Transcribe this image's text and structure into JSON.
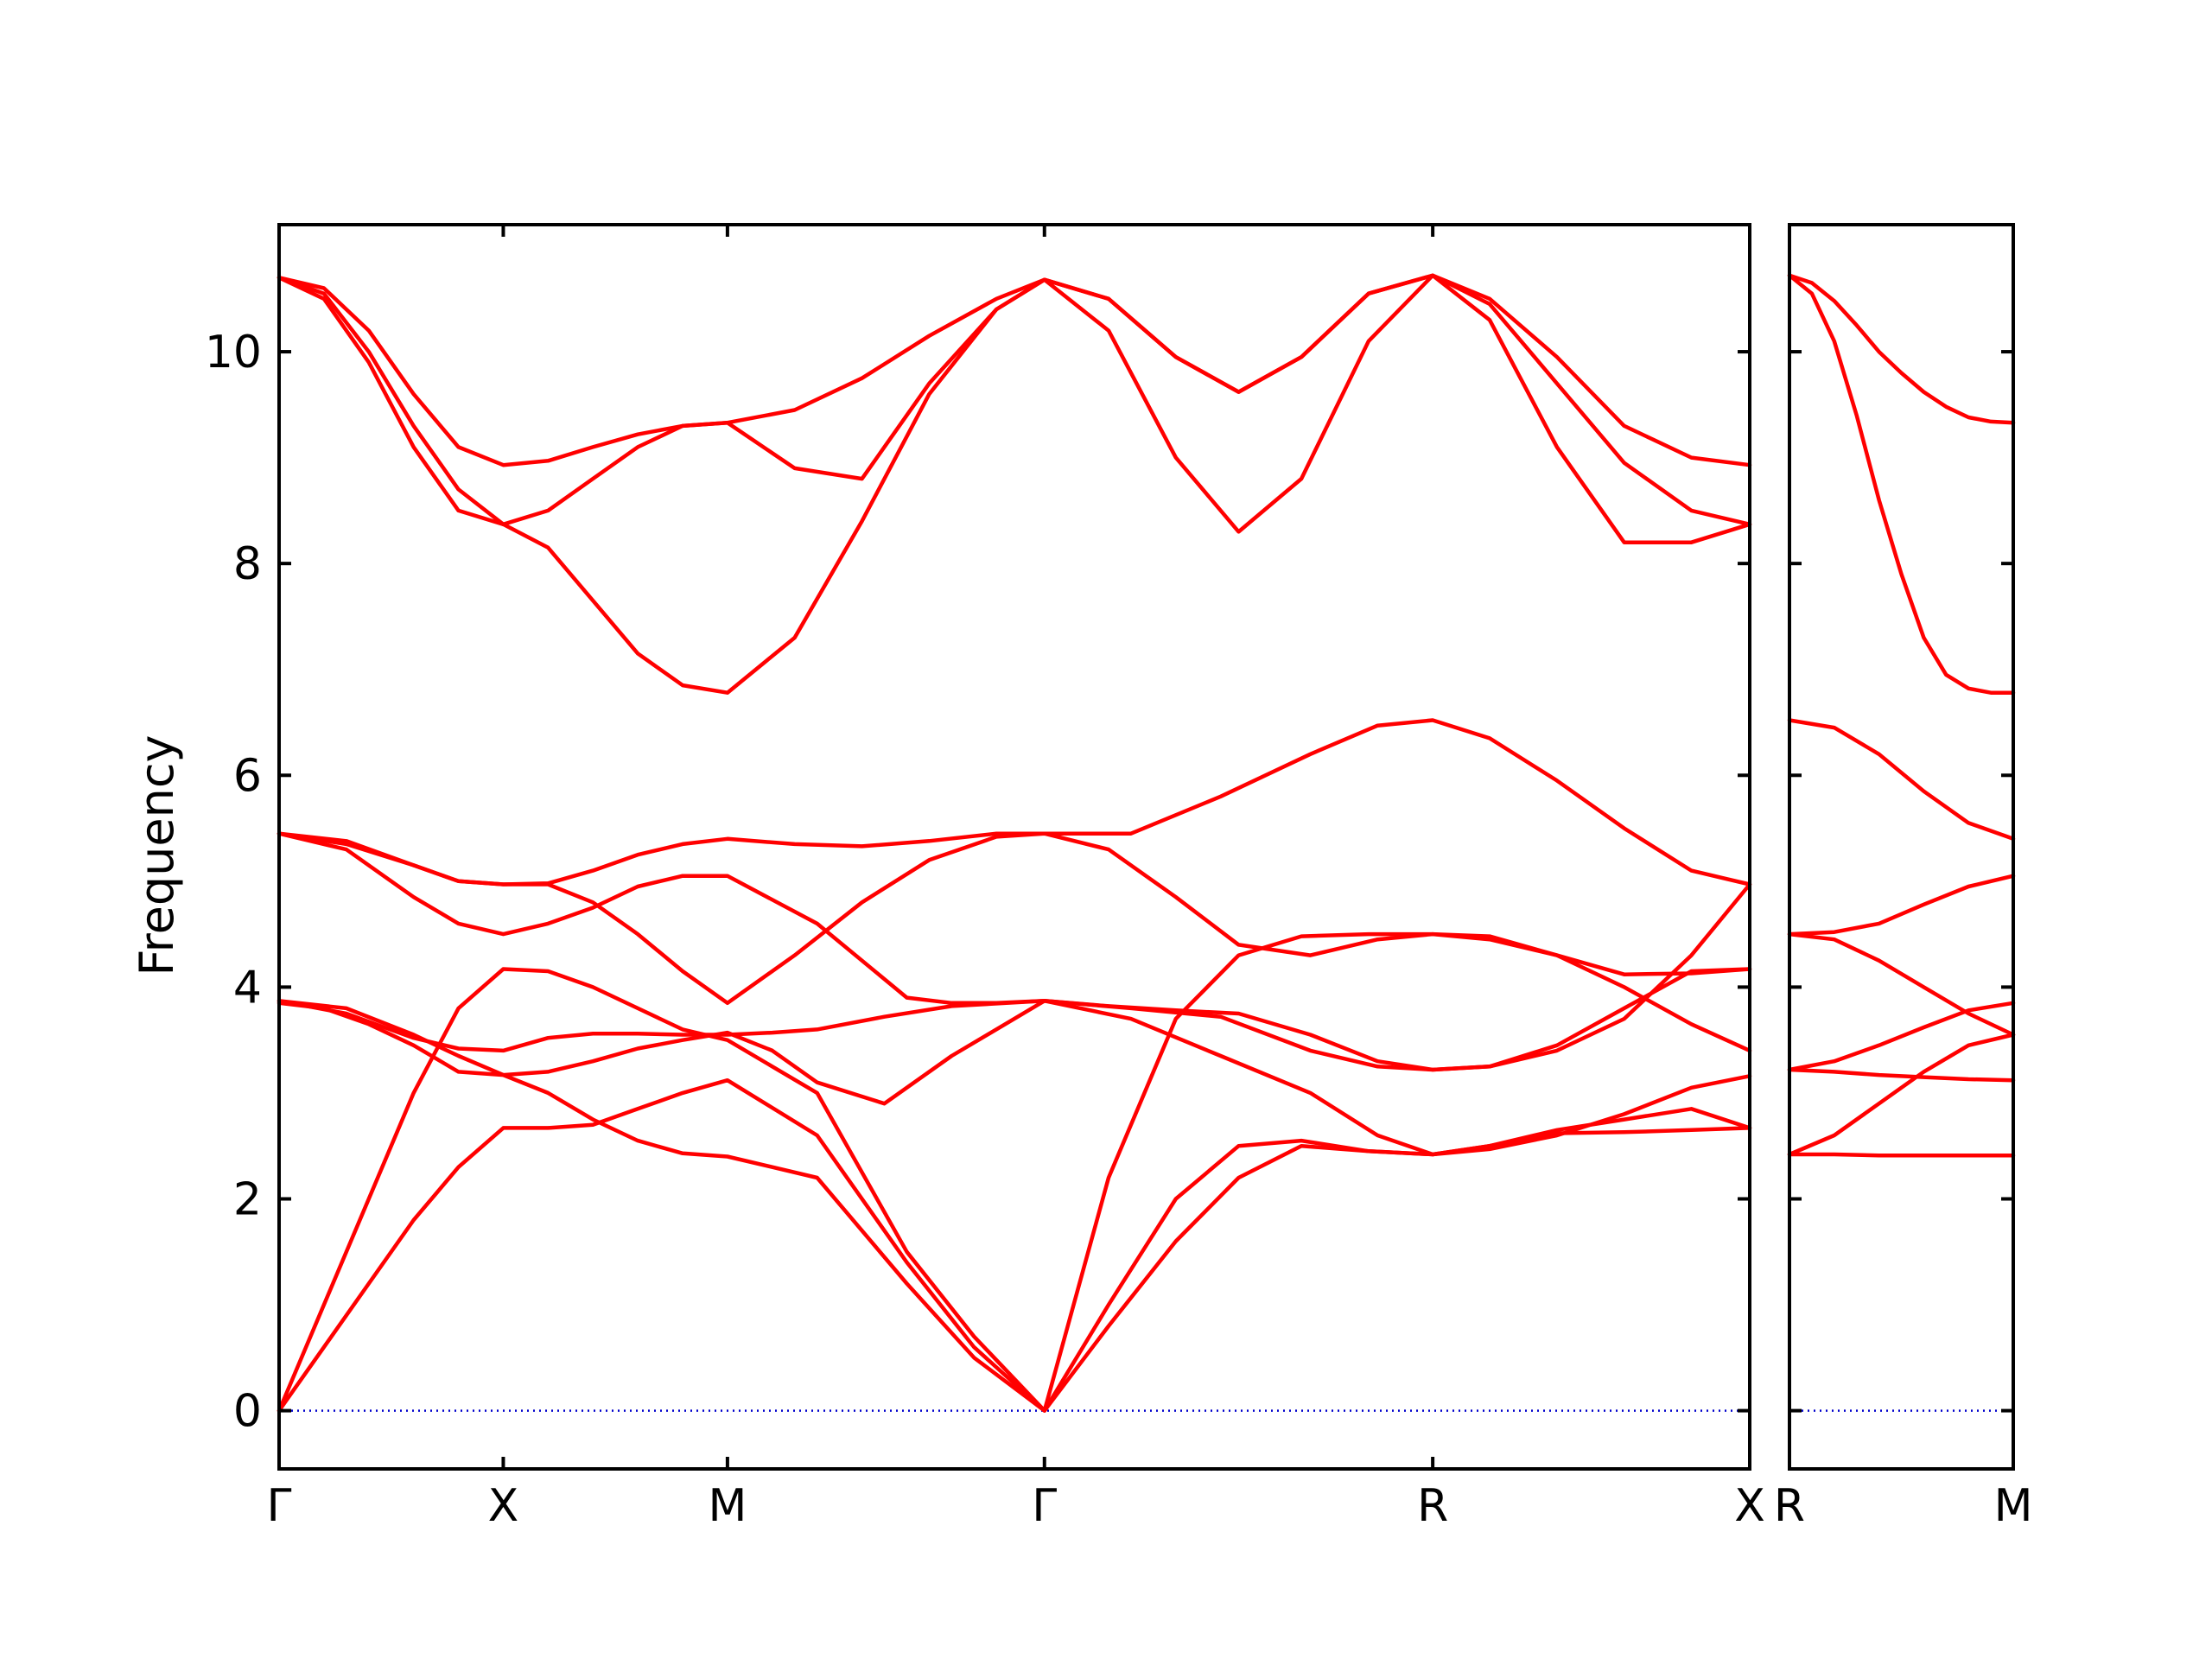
{
  "colors": {
    "band": "#ff0000",
    "zero_line": "#0000cc",
    "frame": "#000000",
    "background": "#ffffff"
  },
  "chart_data": {
    "type": "line",
    "title": "",
    "ylabel": "Frequency",
    "ylim": [
      -0.55,
      11.2
    ],
    "yticks": [
      0,
      2,
      4,
      6,
      8,
      10
    ],
    "ytick_labels": [
      "0",
      "2",
      "4",
      "6",
      "8",
      "10"
    ],
    "zero_line": 0,
    "grid": false,
    "legend": "none",
    "panels": [
      {
        "name": "panel-main",
        "kpoints": [
          {
            "label": "Γ",
            "x": 0
          },
          {
            "label": "X",
            "x": 0.5
          },
          {
            "label": "M",
            "x": 1.0
          },
          {
            "label": "Γ",
            "x": 1.707
          },
          {
            "label": "R",
            "x": 2.573
          },
          {
            "label": "X",
            "x": 3.28
          }
        ],
        "xlim": [
          0,
          3.28
        ],
        "series": [
          {
            "x": [
              0,
              0.1,
              0.2,
              0.3,
              0.4,
              0.5,
              0.6,
              0.7,
              0.8,
              0.9,
              1.0,
              1.2,
              1.4,
              1.55,
              1.707,
              1.85,
              2.0,
              2.14,
              2.28,
              2.43,
              2.573,
              2.7,
              2.85,
              3.0,
              3.15,
              3.28
            ],
            "y": [
              0,
              1.0,
              2.0,
              3.0,
              3.8,
              4.17,
              4.15,
              4.0,
              3.8,
              3.6,
              3.5,
              3.0,
              1.5,
              0.7,
              0,
              2.2,
              3.7,
              4.3,
              4.48,
              4.5,
              4.5,
              4.45,
              4.3,
              4.0,
              3.65,
              3.4
            ]
          },
          {
            "x": [
              0,
              0.1,
              0.2,
              0.3,
              0.4,
              0.5,
              0.6,
              0.7,
              0.8,
              0.9,
              1.0,
              1.2,
              1.4,
              1.55,
              1.707,
              1.85,
              2.0,
              2.14,
              2.28,
              2.43,
              2.573,
              2.7,
              2.85,
              3.0,
              3.15,
              3.28
            ],
            "y": [
              0,
              0.6,
              1.2,
              1.8,
              2.3,
              2.67,
              2.67,
              2.7,
              2.85,
              3.0,
              3.12,
              2.6,
              1.4,
              0.6,
              0,
              0.8,
              1.6,
              2.2,
              2.5,
              2.45,
              2.42,
              2.47,
              2.6,
              2.8,
              3.05,
              3.16
            ]
          },
          {
            "x": [
              0,
              0.1,
              0.2,
              0.3,
              0.4,
              0.5,
              0.6,
              0.7,
              0.8,
              0.9,
              1.0,
              1.2,
              1.4,
              1.55,
              1.707,
              1.85,
              2.0,
              2.14,
              2.28,
              2.43,
              2.573,
              2.7,
              2.85,
              3.0,
              3.15,
              3.28
            ],
            "y": [
              3.85,
              3.8,
              3.65,
              3.45,
              3.2,
              3.17,
              3.0,
              2.75,
              2.55,
              2.43,
              2.4,
              2.2,
              1.2,
              0.5,
              0,
              1.0,
              2.0,
              2.5,
              2.55,
              2.45,
              2.42,
              2.5,
              2.62,
              2.63,
              2.65,
              2.67
            ]
          },
          {
            "x": [
              0,
              0.15,
              0.3,
              0.4,
              0.5,
              0.6,
              0.7,
              0.8,
              0.9,
              1.0,
              1.1,
              1.2,
              1.35,
              1.5,
              1.707,
              1.9,
              2.1,
              2.3,
              2.45,
              2.573,
              2.7,
              2.85,
              3.0,
              3.15,
              3.28
            ],
            "y": [
              3.87,
              3.75,
              3.52,
              3.42,
              3.4,
              3.52,
              3.56,
              3.56,
              3.55,
              3.55,
              3.57,
              3.6,
              3.72,
              3.82,
              3.87,
              3.8,
              3.72,
              3.4,
              3.25,
              3.22,
              3.25,
              3.45,
              3.8,
              4.15,
              4.17
            ]
          },
          {
            "x": [
              0,
              0.15,
              0.3,
              0.4,
              0.5,
              0.6,
              0.7,
              0.8,
              0.9,
              1.0,
              1.1,
              1.2,
              1.35,
              1.5,
              1.707,
              1.9,
              2.1,
              2.3,
              2.45,
              2.573,
              2.7,
              2.85,
              3.0,
              3.15,
              3.28
            ],
            "y": [
              3.87,
              3.8,
              3.55,
              3.35,
              3.17,
              3.2,
              3.3,
              3.42,
              3.5,
              3.57,
              3.4,
              3.1,
              2.9,
              3.35,
              3.87,
              3.7,
              3.35,
              3.0,
              2.6,
              2.42,
              2.5,
              2.65,
              2.75,
              2.85,
              2.67
            ]
          },
          {
            "x": [
              0,
              0.15,
              0.3,
              0.4,
              0.5,
              0.6,
              0.7,
              0.8,
              0.9,
              1.0,
              1.2,
              1.4,
              1.5,
              1.6,
              1.707,
              1.85,
              2.0,
              2.14,
              2.3,
              2.45,
              2.573,
              2.7,
              2.85,
              3.0,
              3.15,
              3.28
            ],
            "y": [
              5.45,
              5.3,
              4.85,
              4.6,
              4.5,
              4.6,
              4.75,
              4.95,
              5.05,
              5.05,
              4.6,
              3.9,
              3.85,
              3.85,
              3.87,
              3.82,
              3.78,
              3.75,
              3.55,
              3.3,
              3.22,
              3.25,
              3.4,
              3.7,
              4.3,
              4.97
            ]
          },
          {
            "x": [
              0,
              0.15,
              0.3,
              0.4,
              0.5,
              0.6,
              0.7,
              0.8,
              0.9,
              1.0,
              1.15,
              1.3,
              1.45,
              1.6,
              1.707,
              1.85,
              2.0,
              2.14,
              2.3,
              2.45,
              2.573,
              2.7,
              2.85,
              3.0,
              3.15,
              3.28
            ],
            "y": [
              5.45,
              5.35,
              5.15,
              5.0,
              4.97,
              4.97,
              4.8,
              4.5,
              4.15,
              3.85,
              4.3,
              4.8,
              5.2,
              5.42,
              5.45,
              5.3,
              4.85,
              4.4,
              4.3,
              4.45,
              4.5,
              4.48,
              4.3,
              4.12,
              4.13,
              4.17
            ]
          },
          {
            "x": [
              0,
              0.15,
              0.3,
              0.4,
              0.5,
              0.6,
              0.7,
              0.8,
              0.9,
              1.0,
              1.15,
              1.3,
              1.45,
              1.6,
              1.707,
              1.9,
              2.1,
              2.3,
              2.45,
              2.573,
              2.7,
              2.85,
              3.0,
              3.15,
              3.28
            ],
            "y": [
              5.45,
              5.38,
              5.15,
              5.0,
              4.97,
              4.98,
              5.1,
              5.25,
              5.35,
              5.4,
              5.35,
              5.33,
              5.38,
              5.45,
              5.45,
              5.45,
              5.8,
              6.2,
              6.47,
              6.52,
              6.35,
              5.95,
              5.5,
              5.1,
              4.97
            ]
          },
          {
            "x": [
              0,
              0.1,
              0.2,
              0.3,
              0.4,
              0.5,
              0.6,
              0.7,
              0.8,
              0.9,
              1.0,
              1.15,
              1.3,
              1.45,
              1.6,
              1.707,
              1.85,
              2.0,
              2.14,
              2.28,
              2.43,
              2.573,
              2.7,
              2.85,
              3.0,
              3.15,
              3.28
            ],
            "y": [
              10.7,
              10.5,
              9.9,
              9.1,
              8.5,
              8.37,
              8.15,
              7.65,
              7.15,
              6.85,
              6.78,
              7.3,
              8.4,
              9.6,
              10.4,
              10.68,
              10.2,
              9.0,
              8.3,
              8.8,
              10.1,
              10.72,
              10.3,
              9.1,
              8.2,
              8.2,
              8.37
            ]
          },
          {
            "x": [
              0,
              0.1,
              0.2,
              0.3,
              0.4,
              0.5,
              0.6,
              0.7,
              0.8,
              0.9,
              1.0,
              1.15,
              1.3,
              1.45,
              1.6,
              1.707,
              1.85,
              2.0,
              2.14,
              2.28,
              2.43,
              2.573,
              2.7,
              2.85,
              3.0,
              3.15,
              3.28
            ],
            "y": [
              10.7,
              10.55,
              10.0,
              9.3,
              8.7,
              8.37,
              8.5,
              8.8,
              9.1,
              9.3,
              9.33,
              8.9,
              8.8,
              9.7,
              10.4,
              10.68,
              10.5,
              9.95,
              9.62,
              9.95,
              10.55,
              10.72,
              10.45,
              9.7,
              8.95,
              8.5,
              8.37
            ]
          },
          {
            "x": [
              0,
              0.1,
              0.2,
              0.3,
              0.4,
              0.5,
              0.6,
              0.7,
              0.8,
              0.9,
              1.0,
              1.15,
              1.3,
              1.45,
              1.6,
              1.707,
              1.85,
              2.0,
              2.14,
              2.28,
              2.43,
              2.573,
              2.7,
              2.85,
              3.0,
              3.15,
              3.28
            ],
            "y": [
              10.7,
              10.6,
              10.2,
              9.6,
              9.1,
              8.93,
              8.97,
              9.1,
              9.22,
              9.3,
              9.33,
              9.45,
              9.75,
              10.15,
              10.5,
              10.68,
              10.5,
              9.95,
              9.62,
              9.95,
              10.55,
              10.72,
              10.5,
              9.95,
              9.3,
              9.0,
              8.93
            ]
          }
        ]
      },
      {
        "name": "panel-right",
        "kpoints": [
          {
            "label": "R",
            "x": 0
          },
          {
            "label": "M",
            "x": 0.5
          }
        ],
        "xlim": [
          0,
          0.5
        ],
        "series": [
          {
            "x": [
              0,
              0.1,
              0.2,
              0.3,
              0.4,
              0.5
            ],
            "y": [
              2.42,
              2.42,
              2.41,
              2.41,
              2.41,
              2.41
            ]
          },
          {
            "x": [
              0,
              0.1,
              0.2,
              0.3,
              0.4,
              0.5
            ],
            "y": [
              2.42,
              2.6,
              2.9,
              3.2,
              3.45,
              3.55
            ]
          },
          {
            "x": [
              0,
              0.1,
              0.2,
              0.3,
              0.4,
              0.5
            ],
            "y": [
              3.22,
              3.2,
              3.17,
              3.15,
              3.13,
              3.12
            ]
          },
          {
            "x": [
              0,
              0.1,
              0.2,
              0.3,
              0.4,
              0.5
            ],
            "y": [
              3.22,
              3.3,
              3.45,
              3.62,
              3.78,
              3.85
            ]
          },
          {
            "x": [
              0,
              0.1,
              0.2,
              0.3,
              0.4,
              0.5
            ],
            "y": [
              4.5,
              4.45,
              4.25,
              4.0,
              3.75,
              3.55
            ]
          },
          {
            "x": [
              0,
              0.1,
              0.2,
              0.3,
              0.4,
              0.5
            ],
            "y": [
              4.5,
              4.52,
              4.6,
              4.78,
              4.95,
              5.05
            ]
          },
          {
            "x": [
              0,
              0.1,
              0.2,
              0.3,
              0.4,
              0.5
            ],
            "y": [
              6.52,
              6.45,
              6.2,
              5.85,
              5.55,
              5.4
            ]
          },
          {
            "x": [
              0,
              0.05,
              0.1,
              0.15,
              0.2,
              0.25,
              0.3,
              0.35,
              0.4,
              0.45,
              0.5
            ],
            "y": [
              10.72,
              10.55,
              10.1,
              9.4,
              8.6,
              7.9,
              7.3,
              6.95,
              6.82,
              6.78,
              6.78
            ]
          },
          {
            "x": [
              0,
              0.05,
              0.1,
              0.15,
              0.2,
              0.25,
              0.3,
              0.35,
              0.4,
              0.45,
              0.5
            ],
            "y": [
              10.72,
              10.65,
              10.48,
              10.25,
              10.0,
              9.8,
              9.62,
              9.48,
              9.38,
              9.34,
              9.33
            ]
          }
        ]
      }
    ]
  }
}
